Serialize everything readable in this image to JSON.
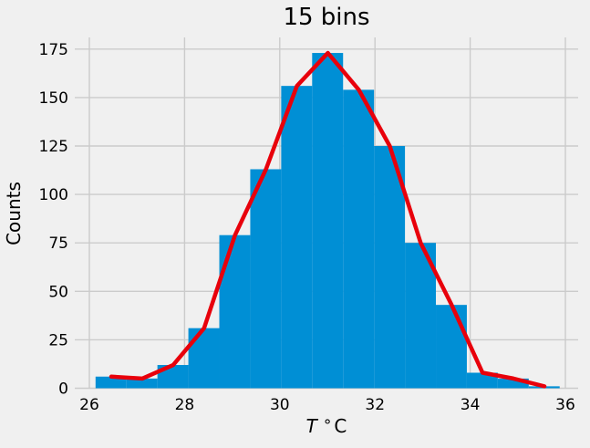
{
  "figure": {
    "title": "15 bins",
    "ylabel": "Counts",
    "xlabel_symbol": "T",
    "xlabel_degree": "°",
    "xlabel_unit": "C"
  },
  "chart_data": {
    "type": "bar",
    "subtype": "histogram-with-line-overlay",
    "title": "15 bins",
    "xlabel": "T °C",
    "ylabel": "Counts",
    "n_bins": 15,
    "bin_edges": [
      26.13,
      26.78,
      27.43,
      28.08,
      28.73,
      29.38,
      30.03,
      30.68,
      31.33,
      31.98,
      32.63,
      33.28,
      33.93,
      34.58,
      35.23,
      35.88
    ],
    "bin_centers": [
      26.46,
      27.11,
      27.76,
      28.41,
      29.06,
      29.71,
      30.36,
      31.01,
      31.66,
      32.31,
      32.96,
      33.61,
      34.26,
      34.91,
      35.56
    ],
    "series": [
      {
        "name": "histogram-bars",
        "type": "bar",
        "color": "#008fd5",
        "values": [
          6,
          5,
          12,
          31,
          79,
          113,
          156,
          173,
          154,
          125,
          75,
          43,
          8,
          5,
          1
        ]
      },
      {
        "name": "line-overlay",
        "type": "line",
        "color": "#e8000b",
        "line_width": 4.5,
        "values": [
          6,
          5,
          12,
          31,
          79,
          113,
          156,
          173,
          154,
          125,
          75,
          43,
          8,
          5,
          1
        ]
      }
    ],
    "xticks": [
      26,
      28,
      30,
      32,
      34,
      36
    ],
    "yticks": [
      0,
      25,
      50,
      75,
      100,
      125,
      150,
      175
    ],
    "xlim": [
      25.69,
      36.27
    ],
    "ylim": [
      0,
      181
    ],
    "grid": true,
    "legend": false,
    "colors": {
      "background": "#f0f0f0",
      "grid": "#cbcbcb",
      "text": "#000000"
    }
  }
}
